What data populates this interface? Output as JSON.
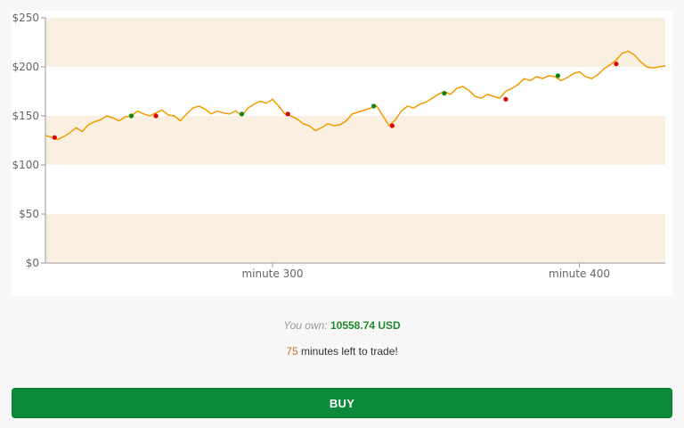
{
  "chart_data": {
    "type": "line",
    "title": "",
    "xlabel": "",
    "ylabel": "",
    "x_range": [
      226,
      428
    ],
    "ylim": [
      0,
      250
    ],
    "y_ticks": [
      "$0",
      "$50",
      "$100",
      "$150",
      "$200",
      "$250"
    ],
    "y_tick_values": [
      0,
      50,
      100,
      150,
      200,
      250
    ],
    "x_ticks": [
      {
        "label": "minute 300",
        "value": 300
      },
      {
        "label": "minute 400",
        "value": 400
      }
    ],
    "band_color": "#faf0e2",
    "line_color": "#f29b00",
    "series": [
      {
        "x": [
          226,
          228,
          230,
          232,
          234,
          236,
          238,
          240,
          242,
          244,
          246,
          248,
          250,
          252,
          254,
          256,
          258,
          260,
          262,
          264,
          266,
          268,
          270,
          272,
          274,
          276,
          278,
          280,
          282,
          284,
          286,
          288,
          290,
          292,
          294,
          296,
          298,
          300,
          302,
          304,
          306,
          308,
          310,
          312,
          314,
          316,
          318,
          320,
          322,
          324,
          326,
          328,
          330,
          332,
          334,
          336,
          338,
          340,
          342,
          344,
          346,
          348,
          350,
          352,
          354,
          356,
          358,
          360,
          362,
          364,
          366,
          368,
          370,
          372,
          374,
          376,
          378,
          380,
          382,
          384,
          386,
          388,
          390,
          392,
          394,
          396,
          398,
          400,
          402,
          404,
          406,
          408,
          410,
          412,
          414,
          416,
          418,
          420,
          422,
          424,
          426,
          428
        ],
        "values": [
          130,
          128,
          126,
          129,
          133,
          138,
          134,
          141,
          144,
          146,
          150,
          148,
          145,
          149,
          150,
          155,
          152,
          150,
          153,
          156,
          151,
          150,
          145,
          152,
          158,
          160,
          157,
          152,
          155,
          153,
          152,
          155,
          150,
          158,
          162,
          165,
          163,
          167,
          160,
          152,
          150,
          147,
          142,
          140,
          135,
          138,
          142,
          140,
          141,
          145,
          152,
          154,
          156,
          158,
          160,
          150,
          140,
          146,
          155,
          160,
          158,
          162,
          164,
          168,
          172,
          175,
          172,
          178,
          180,
          176,
          170,
          168,
          172,
          170,
          168,
          175,
          178,
          182,
          188,
          186,
          190,
          188,
          191,
          190,
          186,
          189,
          193,
          195,
          190,
          188,
          192,
          198,
          202,
          207,
          214,
          216,
          212,
          205,
          200,
          199,
          200,
          201
        ]
      }
    ],
    "markers": [
      {
        "x": 229,
        "y": 128,
        "color": "#e00000"
      },
      {
        "x": 254,
        "y": 150,
        "color": "#0a8a0a"
      },
      {
        "x": 262,
        "y": 150,
        "color": "#e00000"
      },
      {
        "x": 290,
        "y": 152,
        "color": "#0a8a0a"
      },
      {
        "x": 305,
        "y": 152,
        "color": "#e00000"
      },
      {
        "x": 333,
        "y": 160,
        "color": "#0a8a0a"
      },
      {
        "x": 339,
        "y": 140,
        "color": "#e00000"
      },
      {
        "x": 356,
        "y": 173,
        "color": "#0a8a0a"
      },
      {
        "x": 376,
        "y": 167,
        "color": "#e00000"
      },
      {
        "x": 393,
        "y": 191,
        "color": "#0a8a0a"
      },
      {
        "x": 412,
        "y": 203,
        "color": "#e00000"
      }
    ]
  },
  "status": {
    "own_label": "You own:",
    "own_value": "10558.74 USD",
    "minutes_left": "75",
    "minutes_text": "minutes left to trade!"
  },
  "actions": {
    "buy_label": "BUY"
  }
}
